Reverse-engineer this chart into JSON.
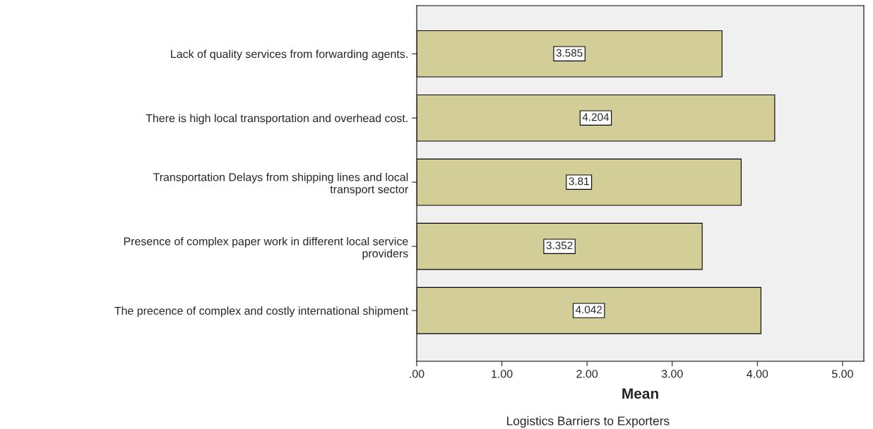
{
  "chart_data": {
    "type": "bar",
    "orientation": "horizontal",
    "title": "Logistics Barriers to Exporters",
    "xlabel": "Mean",
    "categories": [
      "Lack of quality services from forwarding agents.",
      "There is high local transportation and overhead cost.",
      "Transportation Delays from shipping lines and local\ntransport sector",
      "Presence of complex paper work in different local service\nproviders",
      "The precence of complex and costly international shipment"
    ],
    "values": [
      3.585,
      4.204,
      3.81,
      3.352,
      4.042
    ],
    "color": "#d3ce97",
    "xlim": [
      0,
      5.25
    ],
    "xticks": [
      {
        "value": 0,
        "label": ".00"
      },
      {
        "value": 1,
        "label": "1.00"
      },
      {
        "value": 2,
        "label": "2.00"
      },
      {
        "value": 3,
        "label": "3.00"
      },
      {
        "value": 4,
        "label": "4.00"
      },
      {
        "value": 5,
        "label": "5.00"
      }
    ],
    "data_labels": true,
    "grid": false
  }
}
